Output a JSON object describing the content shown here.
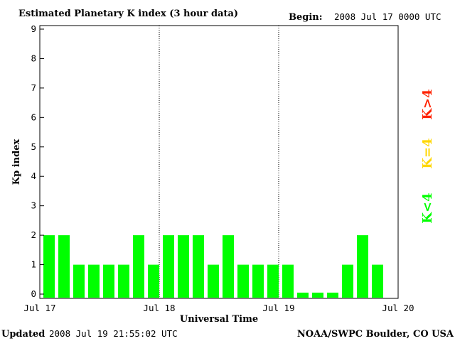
{
  "header": {
    "title": "Estimated Planetary K index (3 hour data)",
    "begin_label": "Begin:",
    "begin_value": "2008 Jul 17 0000 UTC"
  },
  "footer": {
    "updated_label": "Updated",
    "updated_value": "2008 Jul 19 21:55:02 UTC",
    "source": "NOAA/SWPC Boulder, CO USA"
  },
  "legend": {
    "items": [
      {
        "label": "K<4",
        "color": "#00ff00"
      },
      {
        "label": "K=4",
        "color": "#ffd700"
      },
      {
        "label": "K>4",
        "color": "#ff2200"
      }
    ]
  },
  "chart_data": {
    "type": "bar",
    "xlabel": "Universal Time",
    "ylabel": "Kp index",
    "ylim": [
      0,
      9
    ],
    "yticks": [
      0,
      1,
      2,
      3,
      4,
      5,
      6,
      7,
      8,
      9
    ],
    "xtick_labels": [
      "Jul 17",
      "Jul 18",
      "Jul 19",
      "Jul 20"
    ],
    "day_dividers": [
      "Jul 18",
      "Jul 19"
    ],
    "bar_interval_hours": 3,
    "values": [
      2,
      2,
      1,
      1,
      1,
      1,
      2,
      1,
      2,
      2,
      2,
      1,
      2,
      1,
      1,
      1,
      1,
      0.05,
      0.05,
      0.05,
      1,
      2,
      1
    ],
    "bar_color": "#00ff00",
    "grid": false
  }
}
